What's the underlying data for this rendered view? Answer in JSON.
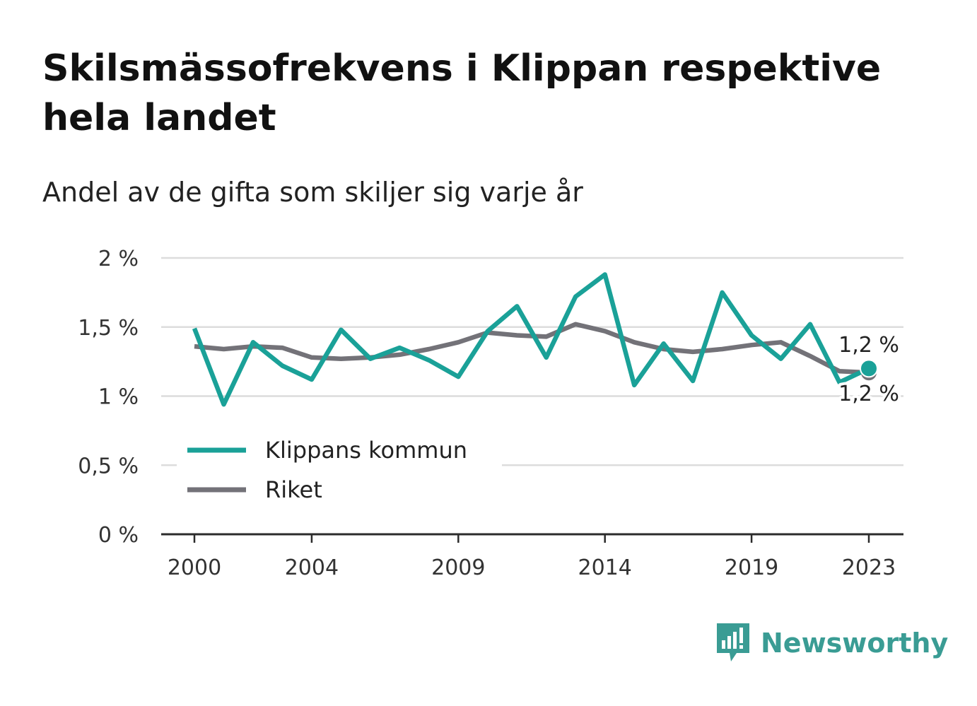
{
  "header": {
    "title": "Skilsmässofrekvens i Klippan respektive hela landet",
    "subtitle": "Andel av de gifta som skiljer sig varje år"
  },
  "brand": {
    "name": "Newsworthy",
    "icon": "newsworthy-logo-icon",
    "color": "#3a9c94"
  },
  "chart_data": {
    "type": "line",
    "x": [
      2000,
      2001,
      2002,
      2003,
      2004,
      2005,
      2006,
      2007,
      2008,
      2009,
      2010,
      2011,
      2012,
      2013,
      2014,
      2015,
      2016,
      2017,
      2018,
      2019,
      2020,
      2021,
      2022,
      2023
    ],
    "x_tick_labels": [
      "2000",
      "2004",
      "2009",
      "2014",
      "2019",
      "2023"
    ],
    "y_tick_labels": [
      "0 %",
      "0,5 %",
      "1 %",
      "1,5 %",
      "2 %"
    ],
    "ylim": [
      0,
      2
    ],
    "y_ticks": [
      0,
      0.5,
      1,
      1.5,
      2
    ],
    "grid": true,
    "legend_position": "bottom-left",
    "series": [
      {
        "name": "Klippans kommun",
        "color": "#1aa198",
        "values": [
          1.49,
          0.94,
          1.39,
          1.22,
          1.12,
          1.48,
          1.27,
          1.35,
          1.26,
          1.14,
          1.47,
          1.65,
          1.28,
          1.72,
          1.88,
          1.08,
          1.38,
          1.11,
          1.75,
          1.44,
          1.27,
          1.52,
          1.1,
          1.2
        ],
        "end_label": "1,2 %"
      },
      {
        "name": "Riket",
        "color": "#737278",
        "values": [
          1.36,
          1.34,
          1.36,
          1.35,
          1.28,
          1.27,
          1.28,
          1.3,
          1.34,
          1.39,
          1.46,
          1.44,
          1.43,
          1.52,
          1.47,
          1.39,
          1.34,
          1.32,
          1.34,
          1.37,
          1.39,
          1.29,
          1.18,
          1.17
        ],
        "end_label": "1,2 %"
      }
    ]
  }
}
